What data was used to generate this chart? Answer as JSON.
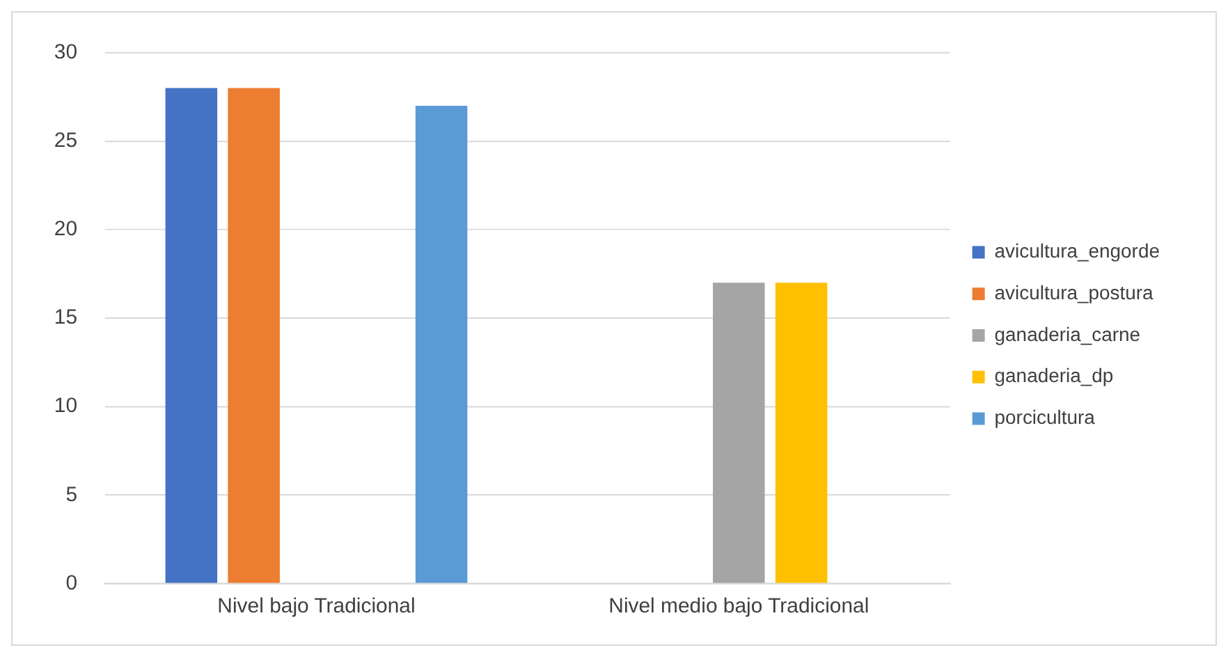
{
  "chart_data": {
    "type": "bar",
    "categories": [
      "Nivel bajo Tradicional",
      "Nivel medio bajo Tradicional"
    ],
    "series": [
      {
        "name": "avicultura_engorde",
        "color": "#4472c4",
        "values": [
          28,
          null
        ]
      },
      {
        "name": "avicultura_postura",
        "color": "#ed7d31",
        "values": [
          28,
          null
        ]
      },
      {
        "name": "ganaderia_carne",
        "color": "#a5a5a5",
        "values": [
          null,
          17
        ]
      },
      {
        "name": "ganaderia_dp",
        "color": "#ffc000",
        "values": [
          null,
          17
        ]
      },
      {
        "name": "porcicultura",
        "color": "#5b9bd5",
        "values": [
          27,
          null
        ]
      }
    ],
    "ylim": [
      0,
      30
    ],
    "yticks": [
      0,
      5,
      10,
      15,
      20,
      25,
      30
    ],
    "grid": "y",
    "legend": "right"
  }
}
